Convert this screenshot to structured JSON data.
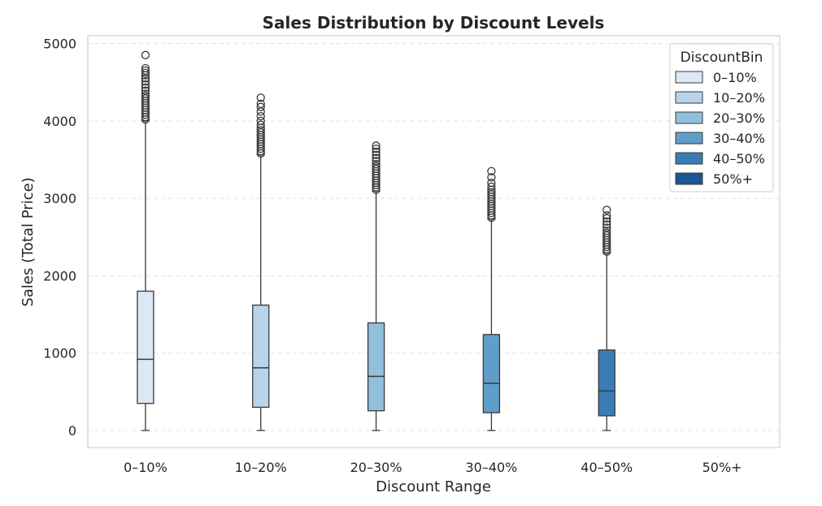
{
  "chart_data": {
    "type": "box",
    "title": "Sales Distribution by Discount Levels",
    "xlabel": "Discount Range",
    "ylabel": "Sales (Total Price)",
    "ylim": [
      -220,
      5100
    ],
    "yticks": [
      0,
      1000,
      2000,
      3000,
      4000,
      5000
    ],
    "grid": "horizontal-dashed",
    "categories": [
      "0–10%",
      "10–20%",
      "20–30%",
      "30–40%",
      "40–50%",
      "50%+"
    ],
    "legend": {
      "title": "DiscountBin",
      "placement": "top-right",
      "entries": [
        "0–10%",
        "10–20%",
        "20–30%",
        "30–40%",
        "40–50%",
        "50%+"
      ]
    },
    "colors": [
      "#dbe8f5",
      "#b8d4ea",
      "#92bfdb",
      "#5f9ec9",
      "#3b7cb6",
      "#1f5592"
    ],
    "boxes": [
      {
        "category": "0–10%",
        "min": 0,
        "q1": 350,
        "median": 920,
        "q3": 1800,
        "whisker_high": 4000,
        "outliers": [
          4020,
          4050,
          4080,
          4110,
          4140,
          4170,
          4200,
          4230,
          4260,
          4290,
          4320,
          4350,
          4390,
          4430,
          4470,
          4510,
          4550,
          4590,
          4620,
          4650,
          4680,
          4850
        ]
      },
      {
        "category": "10–20%",
        "min": 0,
        "q1": 300,
        "median": 810,
        "q3": 1620,
        "whisker_high": 3560,
        "outliers": [
          3580,
          3610,
          3640,
          3670,
          3700,
          3730,
          3760,
          3790,
          3820,
          3850,
          3880,
          3910,
          3950,
          4000,
          4060,
          4120,
          4180,
          4220,
          4300
        ]
      },
      {
        "category": "20–30%",
        "min": 0,
        "q1": 255,
        "median": 700,
        "q3": 1390,
        "whisker_high": 3090,
        "outliers": [
          3110,
          3140,
          3170,
          3200,
          3230,
          3260,
          3290,
          3320,
          3350,
          3380,
          3410,
          3440,
          3480,
          3520,
          3560,
          3600,
          3640,
          3680
        ]
      },
      {
        "category": "30–40%",
        "min": 0,
        "q1": 230,
        "median": 610,
        "q3": 1240,
        "whisker_high": 2730,
        "outliers": [
          2750,
          2780,
          2810,
          2840,
          2870,
          2900,
          2930,
          2960,
          2990,
          3020,
          3050,
          3080,
          3110,
          3150,
          3200,
          3270,
          3350
        ]
      },
      {
        "category": "40–50%",
        "min": 0,
        "q1": 190,
        "median": 510,
        "q3": 1040,
        "whisker_high": 2290,
        "outliers": [
          2310,
          2340,
          2370,
          2400,
          2430,
          2460,
          2490,
          2520,
          2550,
          2580,
          2620,
          2660,
          2700,
          2740,
          2780,
          2850
        ]
      }
    ]
  }
}
